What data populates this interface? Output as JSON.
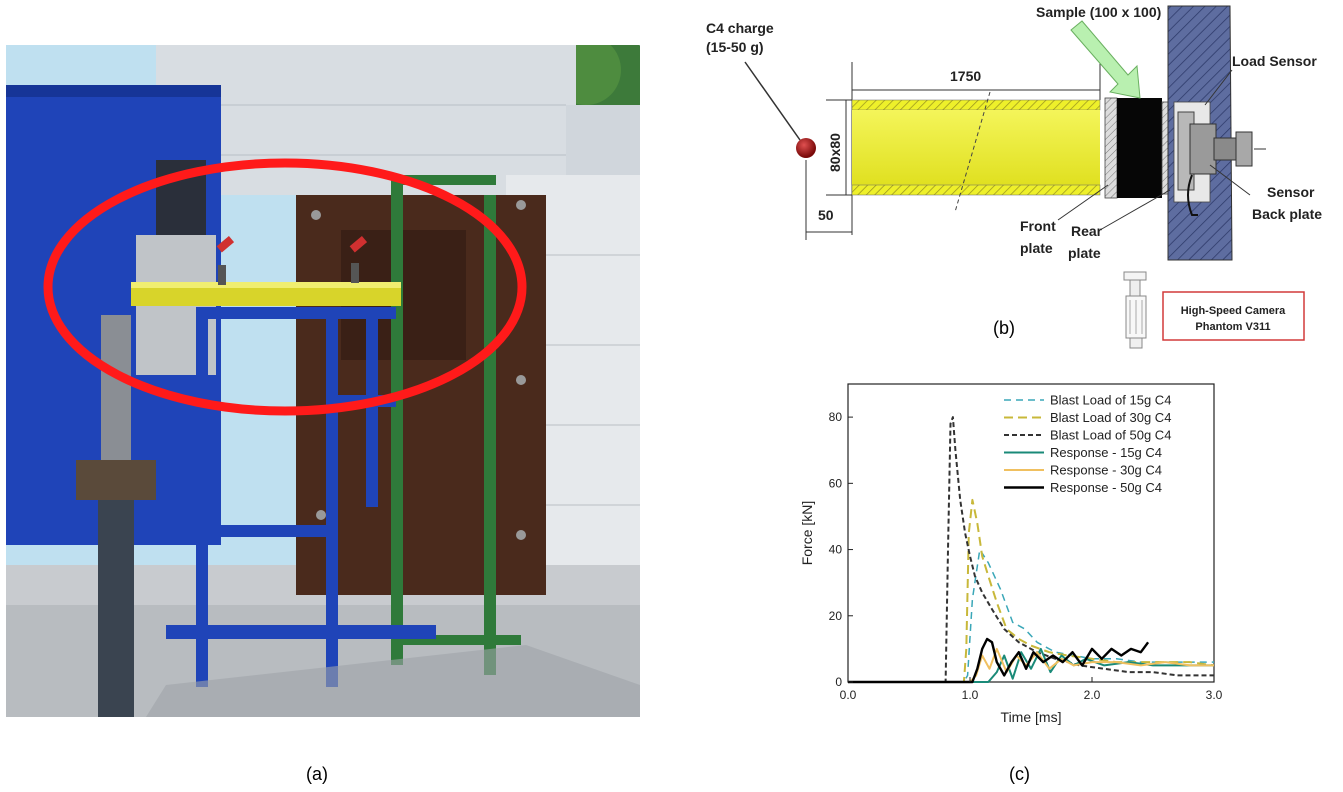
{
  "captions": {
    "a": "(a)",
    "b": "(b)",
    "c": "(c)"
  },
  "diagram": {
    "charge_label_1": "C4 charge",
    "charge_label_2": "(15-50 g)",
    "sample_label": "Sample (100 x 100)",
    "length_label": "1750",
    "section_label": "80x80",
    "offset_label": "50",
    "load_sensor_label": "Load Sensor",
    "sensor_label": "Sensor",
    "back_plate_label": "Back plate",
    "front_label_1": "Front",
    "front_label_2": "plate",
    "rear_label_1": "Rear",
    "rear_label_2": "plate",
    "camera_label_1": "High-Speed Camera",
    "camera_label_2": "Phantom V311"
  },
  "colors": {
    "tube": "#eef02a",
    "hatch": "#b0a82a",
    "wall": "#4a5a8a",
    "arrow": "#b9f0b0",
    "charge": "#b01818",
    "highlight": "#ff1a1a",
    "blue_frame": "#1f44b8",
    "green_frame": "#2f7a3a"
  },
  "chart_data": {
    "type": "line",
    "xlabel": "Time [ms]",
    "ylabel": "Force [kN]",
    "xlim": [
      0,
      3.0
    ],
    "ylim": [
      0,
      90
    ],
    "xticks": [
      0.0,
      1.0,
      2.0,
      3.0
    ],
    "xtick_labels": [
      "0.0",
      "1.0",
      "2.0",
      "3.0"
    ],
    "yticks": [
      0,
      20,
      40,
      60,
      80
    ],
    "ytick_labels": [
      "0",
      "20",
      "40",
      "60",
      "80"
    ],
    "legend_position": "top-right",
    "series": [
      {
        "name": "Blast Load of 15g C4",
        "color": "#3aa7b8",
        "dash": "7,5",
        "width": 1.5,
        "x": [
          0,
          0.95,
          0.98,
          1.02,
          1.08,
          1.15,
          1.25,
          1.35,
          1.45,
          1.55,
          1.7,
          1.85,
          2.0,
          2.2,
          2.4,
          2.6,
          2.8,
          3.0
        ],
        "y": [
          0,
          0,
          2,
          25,
          40,
          36,
          28,
          18,
          16,
          12,
          9,
          8,
          7,
          7,
          6,
          6,
          6,
          6
        ]
      },
      {
        "name": "Blast Load of 30g C4",
        "color": "#c8b83a",
        "dash": "9,5",
        "width": 2,
        "x": [
          0,
          0.95,
          0.97,
          0.99,
          1.02,
          1.06,
          1.1,
          1.15,
          1.22,
          1.3,
          1.4,
          1.5,
          1.65,
          1.8,
          2.0,
          2.2,
          2.4,
          2.6,
          2.8,
          3.0
        ],
        "y": [
          0,
          0,
          10,
          45,
          55,
          48,
          38,
          32,
          24,
          16,
          13,
          11,
          9,
          8,
          7,
          6,
          6,
          6,
          6,
          5
        ]
      },
      {
        "name": "Blast Load of 50g C4",
        "color": "#333333",
        "dash": "5,3",
        "width": 2,
        "x": [
          0,
          0.8,
          0.82,
          0.84,
          0.86,
          0.88,
          0.92,
          0.96,
          1.0,
          1.04,
          1.1,
          1.18,
          1.28,
          1.4,
          1.55,
          1.7,
          1.9,
          2.1,
          2.3,
          2.5,
          2.7,
          3.0
        ],
        "y": [
          0,
          0,
          40,
          78,
          80,
          70,
          55,
          45,
          38,
          32,
          27,
          22,
          16,
          12,
          9,
          7,
          5,
          4,
          3,
          3,
          2,
          2
        ]
      },
      {
        "name": "Response - 15g C4",
        "color": "#1a8a78",
        "dash": "",
        "width": 2,
        "x": [
          0,
          1.15,
          1.22,
          1.28,
          1.35,
          1.42,
          1.5,
          1.58,
          1.66,
          1.75,
          1.85,
          1.95,
          2.1,
          2.3,
          2.5,
          2.7,
          2.85,
          3.0
        ],
        "y": [
          0,
          0,
          3,
          8,
          1,
          9,
          4,
          10,
          3,
          8,
          5,
          7,
          5,
          6,
          5,
          5,
          5,
          5
        ]
      },
      {
        "name": "Response - 30g C4",
        "color": "#f0c060",
        "dash": "",
        "width": 2,
        "x": [
          0,
          1.0,
          1.05,
          1.1,
          1.16,
          1.22,
          1.3,
          1.38,
          1.46,
          1.55,
          1.65,
          1.75,
          1.85,
          2.0,
          2.2,
          2.4,
          2.6,
          2.8,
          3.0
        ],
        "y": [
          0,
          0,
          2,
          8,
          4,
          10,
          3,
          8,
          5,
          9,
          4,
          7,
          5,
          6,
          6,
          5,
          6,
          5,
          5
        ]
      },
      {
        "name": "Response - 50g C4",
        "color": "#000000",
        "dash": "",
        "width": 2.4,
        "x": [
          0,
          1.02,
          1.06,
          1.1,
          1.14,
          1.18,
          1.22,
          1.28,
          1.34,
          1.4,
          1.46,
          1.52,
          1.6,
          1.68,
          1.76,
          1.84,
          1.92,
          2.0,
          2.08,
          2.16,
          2.24,
          2.32,
          2.4,
          2.46
        ],
        "y": [
          0,
          0,
          4,
          10,
          13,
          12,
          6,
          2,
          6,
          9,
          4,
          9,
          6,
          8,
          6,
          9,
          5,
          10,
          7,
          10,
          8,
          10,
          9,
          12
        ]
      }
    ]
  }
}
